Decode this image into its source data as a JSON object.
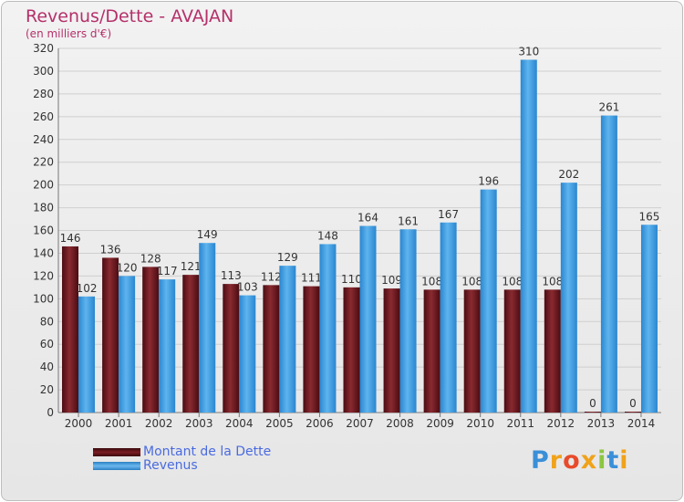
{
  "chart_data": {
    "type": "bar",
    "title": "Revenus/Dette - AVAJAN",
    "subtitle": "(en milliers d'€)",
    "xlabel": "",
    "ylabel": "",
    "ylim": [
      0,
      320
    ],
    "yticks": [
      0,
      20,
      40,
      60,
      80,
      100,
      120,
      140,
      160,
      180,
      200,
      220,
      240,
      260,
      280,
      300,
      320
    ],
    "categories": [
      "2000",
      "2001",
      "2002",
      "2003",
      "2004",
      "2005",
      "2006",
      "2007",
      "2008",
      "2009",
      "2010",
      "2011",
      "2012",
      "2013",
      "2014"
    ],
    "series": [
      {
        "name": "Montant de la Dette",
        "color": "#7a1c22",
        "values": [
          146,
          136,
          128,
          121,
          113,
          112,
          111,
          110,
          109,
          108,
          108,
          108,
          108,
          0,
          0
        ],
        "labels": [
          "146",
          "136",
          "128",
          "121",
          "113",
          "112",
          "111",
          "110",
          "109",
          "108",
          "108",
          "108",
          "108",
          "0",
          "0"
        ]
      },
      {
        "name": "Revenus",
        "color": "#4aa3e3",
        "values": [
          102,
          120,
          117,
          149,
          103,
          129,
          148,
          164,
          161,
          167,
          196,
          310,
          202,
          261,
          165
        ],
        "labels": [
          "102",
          "120",
          "117",
          "149",
          "103",
          "129",
          "148",
          "164",
          "161",
          "167",
          "196",
          "310",
          "202",
          "261",
          "165"
        ]
      }
    ],
    "legend_position": "bottom-left",
    "grid": true
  },
  "logo_text": [
    "P",
    "r",
    "o",
    "x",
    "i",
    "t",
    "i"
  ]
}
